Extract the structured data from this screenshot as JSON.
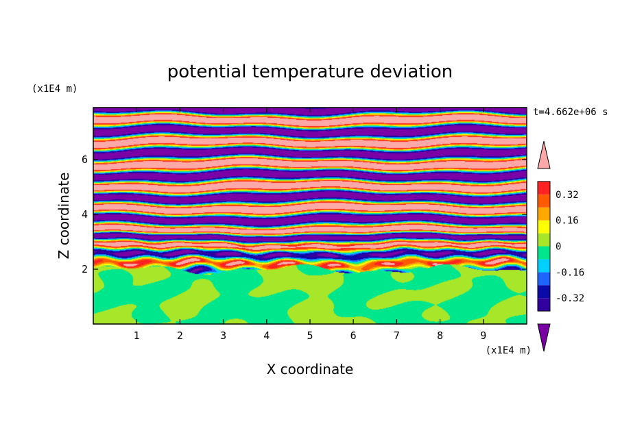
{
  "chart_data": {
    "type": "heatmap",
    "title": "potential temperature deviation",
    "xlabel": "X coordinate",
    "ylabel": "Z coordinate",
    "x_unit": "(x1E4 m)",
    "y_unit": "(x1E4 m)",
    "time_label": "t=4.662e+06 s",
    "xlim": [
      0,
      10
    ],
    "ylim": [
      0,
      7.9
    ],
    "x_ticks": [
      "1",
      "2",
      "3",
      "4",
      "5",
      "6",
      "7",
      "8",
      "9"
    ],
    "y_ticks": [
      "2",
      "4",
      "6"
    ],
    "colorbar": {
      "levels": [
        -0.48,
        -0.4,
        -0.32,
        -0.24,
        -0.16,
        -0.08,
        0,
        0.08,
        0.16,
        0.24,
        0.32,
        0.4,
        0.48
      ],
      "colors": [
        "#7a00a6",
        "#3300a0",
        "#0a0aa8",
        "#1e64ff",
        "#00d0ff",
        "#00e68c",
        "#a8e62a",
        "#ffff00",
        "#ffa800",
        "#ff5a00",
        "#ff2222",
        "#ffa8a8"
      ],
      "tick_labels": [
        "0.32",
        "0.16",
        "0",
        "-0.16",
        "-0.32"
      ],
      "tick_values": [
        0.32,
        0.16,
        0,
        -0.16,
        -0.32
      ],
      "extend": "both"
    },
    "field_description": {
      "lower_layer_z_below": 2.0,
      "lower_layer_values_range": [
        -0.08,
        0.08
      ],
      "upper_layer_values_range": [
        -0.48,
        0.48
      ]
    }
  }
}
